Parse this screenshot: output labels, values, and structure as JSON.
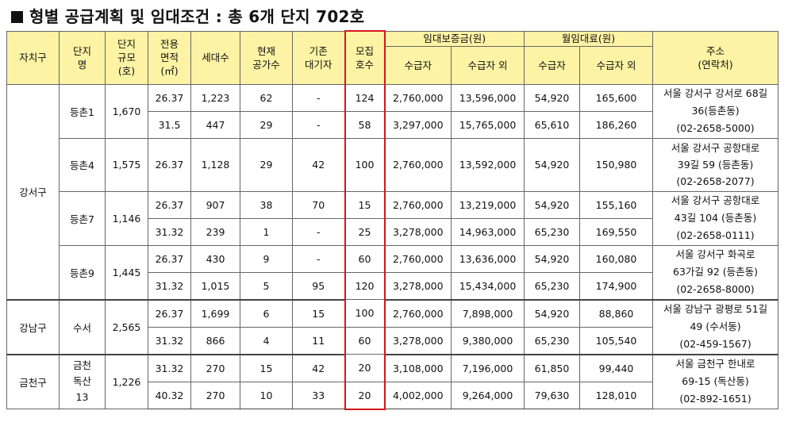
{
  "title": "형별 공급계획 및 임대조건 : 총 6개 단지 702호",
  "headers": {
    "region": "자치구",
    "complex_name": [
      "단지",
      "명"
    ],
    "complex_size": [
      "단지",
      "규모",
      "(호)"
    ],
    "area": [
      "전용",
      "면적",
      "(㎡)"
    ],
    "households": "세대수",
    "vacant": [
      "현재",
      "공가수"
    ],
    "waiting": [
      "기존",
      "대기자"
    ],
    "recruit": [
      "모집",
      "호수"
    ],
    "deposit": "임대보증금(원)",
    "rent": "월임대료(원)",
    "beneficiary": "수급자",
    "non_beneficiary": "수급자 외",
    "address": [
      "주소",
      "(연락처)"
    ]
  },
  "regions": [
    {
      "name": "강서구",
      "complexes": [
        {
          "name": "등촌1",
          "size": "1,670",
          "address": [
            "서울 강서구 강서로 68길",
            "36(등촌동)",
            "(02-2658-5000)"
          ],
          "rows": [
            {
              "area": "26.37",
              "households": "1,223",
              "vacant": "62",
              "waiting": "-",
              "recruit": "124",
              "dep_b": "2,760,000",
              "dep_nb": "13,596,000",
              "rent_b": "54,920",
              "rent_nb": "165,600"
            },
            {
              "area": "31.5",
              "households": "447",
              "vacant": "29",
              "waiting": "-",
              "recruit": "58",
              "dep_b": "3,297,000",
              "dep_nb": "15,765,000",
              "rent_b": "65,610",
              "rent_nb": "186,260"
            }
          ]
        },
        {
          "name": "등촌4",
          "size": "1,575",
          "address": [
            "서울 강서구 공항대로",
            "39길 59 (등촌동)",
            "(02-2658-2077)"
          ],
          "rows": [
            {
              "area": "26.37",
              "households": "1,128",
              "vacant": "29",
              "waiting": "42",
              "recruit": "100",
              "dep_b": "2,760,000",
              "dep_nb": "13,592,000",
              "rent_b": "54,920",
              "rent_nb": "150,980"
            }
          ]
        },
        {
          "name": "등촌7",
          "size": "1,146",
          "address": [
            "서울 강서구 공항대로",
            "43길 104 (등촌동)",
            "(02-2658-0111)"
          ],
          "rows": [
            {
              "area": "26.37",
              "households": "907",
              "vacant": "38",
              "waiting": "70",
              "recruit": "15",
              "dep_b": "2,760,000",
              "dep_nb": "13,219,000",
              "rent_b": "54,920",
              "rent_nb": "155,160"
            },
            {
              "area": "31.32",
              "households": "239",
              "vacant": "1",
              "waiting": "-",
              "recruit": "25",
              "dep_b": "3,278,000",
              "dep_nb": "14,963,000",
              "rent_b": "65,230",
              "rent_nb": "169,550"
            }
          ]
        },
        {
          "name": "등촌9",
          "size": "1,445",
          "address": [
            "서울 강서구 화곡로",
            "63가길 92 (등촌동)",
            "(02-2658-8000)"
          ],
          "rows": [
            {
              "area": "26.37",
              "households": "430",
              "vacant": "9",
              "waiting": "-",
              "recruit": "60",
              "dep_b": "2,760,000",
              "dep_nb": "13,636,000",
              "rent_b": "54,920",
              "rent_nb": "160,080"
            },
            {
              "area": "31.32",
              "households": "1,015",
              "vacant": "5",
              "waiting": "95",
              "recruit": "120",
              "dep_b": "3,278,000",
              "dep_nb": "15,434,000",
              "rent_b": "65,230",
              "rent_nb": "174,900"
            }
          ]
        }
      ]
    },
    {
      "name": "강남구",
      "complexes": [
        {
          "name": "수서",
          "size": "2,565",
          "address": [
            "서울 강남구 광평로 51길",
            "49 (수서동)",
            "(02-459-1567)"
          ],
          "rows": [
            {
              "area": "26.37",
              "households": "1,699",
              "vacant": "6",
              "waiting": "15",
              "recruit": "100",
              "dep_b": "2,760,000",
              "dep_nb": "7,898,000",
              "rent_b": "54,920",
              "rent_nb": "88,860"
            },
            {
              "area": "31.32",
              "households": "866",
              "vacant": "4",
              "waiting": "11",
              "recruit": "60",
              "dep_b": "3,278,000",
              "dep_nb": "9,380,000",
              "rent_b": "65,230",
              "rent_nb": "105,540"
            }
          ]
        }
      ]
    },
    {
      "name": "금천구",
      "complexes": [
        {
          "name": "금천\n독산\n13",
          "size": "1,226",
          "address": [
            "서울 금천구 한내로",
            "69-15 (독산동)",
            "(02-892-1651)"
          ],
          "rows": [
            {
              "area": "31.32",
              "households": "270",
              "vacant": "15",
              "waiting": "42",
              "recruit": "20",
              "dep_b": "3,108,000",
              "dep_nb": "7,196,000",
              "rent_b": "61,850",
              "rent_nb": "99,440"
            },
            {
              "area": "40.32",
              "households": "270",
              "vacant": "10",
              "waiting": "33",
              "recruit": "20",
              "dep_b": "4,002,000",
              "dep_nb": "9,264,000",
              "rent_b": "79,630",
              "rent_nb": "128,010"
            }
          ]
        }
      ]
    }
  ],
  "colors": {
    "header_bg": "#fcf3a4",
    "highlight": "#d4161c"
  }
}
